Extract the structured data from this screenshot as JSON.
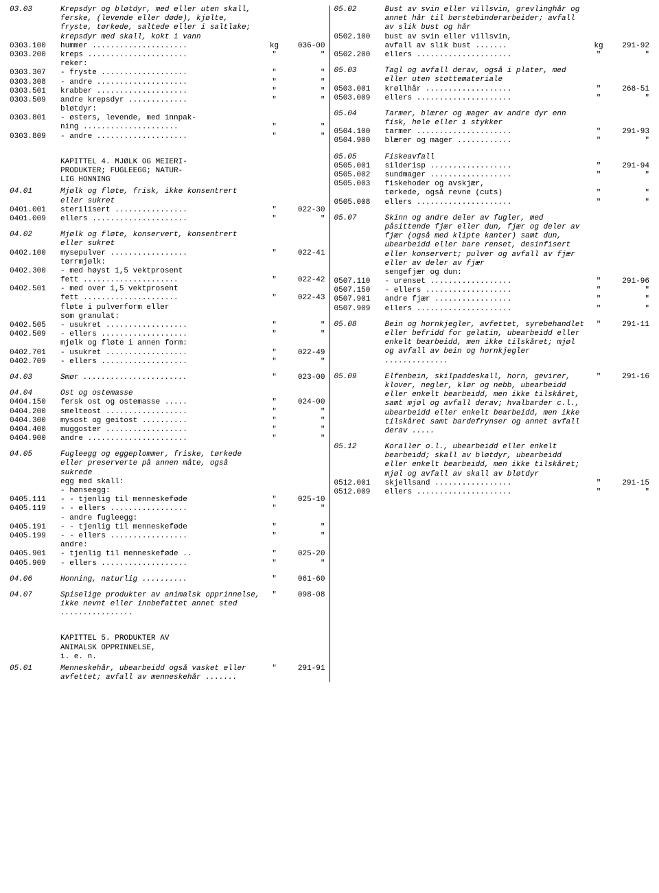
{
  "left": [
    {
      "code": "03.03",
      "desc": "Krepsdyr og bløtdyr, med eller uten skall, ferske, (levende eller døde), kjølte, fryste, tørkede, saltede eller i saltlake; krepsdyr med skall, kokt i vann",
      "italic": true
    },
    {
      "code": "0303.100",
      "desc": "hummer .....................",
      "unit": "kg",
      "num": "036-00"
    },
    {
      "code": "0303.200",
      "desc": "kreps ......................",
      "unit": "\"",
      "num": "\""
    },
    {
      "code": "",
      "desc": "reker:"
    },
    {
      "code": "0303.307",
      "desc": "- fryste ...................",
      "unit": "\"",
      "num": "\""
    },
    {
      "code": "0303.308",
      "desc": "- andre ....................",
      "unit": "\"",
      "num": "\""
    },
    {
      "code": "0303.501",
      "desc": "krabber ....................",
      "unit": "\"",
      "num": "\""
    },
    {
      "code": "0303.509",
      "desc": "andre krepsdyr .............",
      "unit": "\"",
      "num": "\""
    },
    {
      "code": "",
      "desc": "bløtdyr:"
    },
    {
      "code": "0303.801",
      "desc": "- østers, levende, med innpak-"
    },
    {
      "code": "",
      "desc": "  ning .....................",
      "unit": "\"",
      "num": "\""
    },
    {
      "code": "0303.809",
      "desc": "- andre ....................",
      "unit": "\"",
      "num": "\""
    },
    {
      "spacer": true
    },
    {
      "chap": "KAPITTEL 4. MJØLK OG MEIERI-\nPRODUKTER; FUGLEEGG; NATUR-\nLIG HONNING"
    },
    {
      "code": "04.01",
      "desc": "Mjølk og fløte, frisk, ikke konsentrert eller sukret",
      "italic": true
    },
    {
      "code": "0401.001",
      "desc": "sterilisert ................",
      "unit": "\"",
      "num": "022-30"
    },
    {
      "code": "0401.009",
      "desc": "ellers .....................",
      "unit": "\"",
      "num": "\""
    },
    {
      "spacer": true
    },
    {
      "code": "04.02",
      "desc": "Mjølk og fløte, konservert, konsentrert eller sukret",
      "italic": true
    },
    {
      "code": "0402.100",
      "desc": "mysepulver .................",
      "unit": "\"",
      "num": "022-41"
    },
    {
      "code": "",
      "desc": "tørrmjølk:"
    },
    {
      "code": "0402.300",
      "desc": "- med høyst 1,5 vektprosent"
    },
    {
      "code": "",
      "desc": "  fett .....................",
      "unit": "\"",
      "num": "022-42"
    },
    {
      "code": "0402.501",
      "desc": "- med over 1,5 vektprosent"
    },
    {
      "code": "",
      "desc": "  fett .....................",
      "unit": "\"",
      "num": "022-43"
    },
    {
      "code": "",
      "desc": "fløte i pulverform eller"
    },
    {
      "code": "",
      "desc": "som granulat:"
    },
    {
      "code": "0402.505",
      "desc": "- usukret ..................",
      "unit": "\"",
      "num": "\""
    },
    {
      "code": "0402.509",
      "desc": "- ellers ...................",
      "unit": "\"",
      "num": "\""
    },
    {
      "code": "",
      "desc": "mjølk og fløte i annen form:"
    },
    {
      "code": "0402.701",
      "desc": "- usukret ..................",
      "unit": "\"",
      "num": "022-49"
    },
    {
      "code": "0402.709",
      "desc": "- ellers ...................",
      "unit": "\"",
      "num": "\""
    },
    {
      "spacer": true
    },
    {
      "code": "04.03",
      "desc": "Smør .......................",
      "italic": true,
      "unit": "\"",
      "num": "023-00"
    },
    {
      "spacer": true
    },
    {
      "code": "04.04",
      "desc": "Ost og ostemasse",
      "italic": true
    },
    {
      "code": "0404.150",
      "desc": "fersk ost og ostemasse .....",
      "unit": "\"",
      "num": "024-00"
    },
    {
      "code": "0404.200",
      "desc": "smelteost ..................",
      "unit": "\"",
      "num": "\""
    },
    {
      "code": "0404.300",
      "desc": "mysost og geitost ..........",
      "unit": "\"",
      "num": "\""
    },
    {
      "code": "0404.400",
      "desc": "muggoster ..................",
      "unit": "\"",
      "num": "\""
    },
    {
      "code": "0404.900",
      "desc": "andre ......................",
      "unit": "\"",
      "num": "\""
    },
    {
      "spacer": true
    },
    {
      "code": "04.05",
      "desc": "Fugleegg og eggeplommer, friske, tørkede eller preserverte på annen måte, også sukrede",
      "italic": true
    },
    {
      "code": "",
      "desc": "egg med skall:"
    },
    {
      "code": "",
      "desc": "- hønseegg:"
    },
    {
      "code": "0405.111",
      "desc": "- - tjenlig til menneskeføde",
      "unit": "\"",
      "num": "025-10"
    },
    {
      "code": "0405.119",
      "desc": "- - ellers .................",
      "unit": "\"",
      "num": "\""
    },
    {
      "code": "",
      "desc": "- andre fugleegg:"
    },
    {
      "code": "0405.191",
      "desc": "- - tjenlig til menneskeføde",
      "unit": "\"",
      "num": "\""
    },
    {
      "code": "0405.199",
      "desc": "- - ellers .................",
      "unit": "\"",
      "num": "\""
    },
    {
      "code": "",
      "desc": "andre:"
    },
    {
      "code": "0405.901",
      "desc": "- tjenlig til menneskeføde ..",
      "unit": "\"",
      "num": "025-20"
    },
    {
      "code": "0405.909",
      "desc": "- ellers ...................",
      "unit": "\"",
      "num": "\""
    },
    {
      "spacer": true
    },
    {
      "code": "04.06",
      "desc": "Honning, naturlig ..........",
      "italic": true,
      "unit": "\"",
      "num": "061-60"
    },
    {
      "spacer": true
    },
    {
      "code": "04.07",
      "desc": "Spiselige produkter av animalsk opprinnelse, ikke nevnt eller innbefattet annet sted ................",
      "italic": true,
      "unit": "\"",
      "num": "098-08"
    },
    {
      "spacer": true
    },
    {
      "chap": "KAPITTEL 5. PRODUKTER AV\nANIMALSK OPPRINNELSE,\ni. e. n."
    },
    {
      "code": "05.01",
      "desc": "Menneskehår, ubearbeidd også vasket eller avfettet; avfall av menneskehår .......",
      "italic": true,
      "unit": "\"",
      "num": "291-91"
    }
  ],
  "right": [
    {
      "code": "05.02",
      "desc": "Bust av svin eller villsvin, grevlinghår og annet hår til børstebinderarbeider; avfall av slik bust og hår",
      "italic": true
    },
    {
      "code": "0502.100",
      "desc": "bust av svin eller villsvin,"
    },
    {
      "code": "",
      "desc": "avfall av slik bust .......",
      "unit": "kg",
      "num": "291-92"
    },
    {
      "code": "0502.200",
      "desc": "ellers .....................",
      "unit": "\"",
      "num": "\""
    },
    {
      "spacer": true
    },
    {
      "code": "05.03",
      "desc": "Tagl og avfall derav, også i plater, med eller uten støttemateriale",
      "italic": true
    },
    {
      "code": "0503.001",
      "desc": "krøllhår ...................",
      "unit": "\"",
      "num": "268-51"
    },
    {
      "code": "0503.009",
      "desc": "ellers .....................",
      "unit": "\"",
      "num": "\""
    },
    {
      "spacer": true
    },
    {
      "code": "05.04",
      "desc": "Tarmer, blærer og mager av andre dyr enn fisk, hele eller i stykker",
      "italic": true
    },
    {
      "code": "0504.100",
      "desc": "tarmer .....................",
      "unit": "\"",
      "num": "291-93"
    },
    {
      "code": "0504.900",
      "desc": "blærer og mager ............",
      "unit": "\"",
      "num": "\""
    },
    {
      "spacer": true
    },
    {
      "code": "05.05",
      "desc": "Fiskeavfall",
      "italic": true
    },
    {
      "code": "0505.001",
      "desc": "silderisp ..................",
      "unit": "\"",
      "num": "291-94"
    },
    {
      "code": "0505.002",
      "desc": "sundmager ..................",
      "unit": "\"",
      "num": "\""
    },
    {
      "code": "0505.003",
      "desc": "fiskehoder og avskjær,"
    },
    {
      "code": "",
      "desc": "tørkede, også revne (cuts)",
      "unit": "\"",
      "num": "\""
    },
    {
      "code": "0505.008",
      "desc": "ellers .....................",
      "unit": "\"",
      "num": "\""
    },
    {
      "spacer": true
    },
    {
      "code": "05.07",
      "desc": "Skinn og andre deler av fugler, med påsittende fjær eller dun, fjær og deler av fjær (også med klipte kanter) samt dun, ubearbeidd eller bare renset, desinfisert eller konservert; pulver og avfall av fjær eller av deler av fjær",
      "italic": true
    },
    {
      "code": "",
      "desc": "sengefjær og dun:"
    },
    {
      "code": "0507.110",
      "desc": "- urenset ..................",
      "unit": "\"",
      "num": "291-96"
    },
    {
      "code": "0507.150",
      "desc": "- ellers ...................",
      "unit": "\"",
      "num": "\""
    },
    {
      "code": "0507.901",
      "desc": "andre fjær .................",
      "unit": "\"",
      "num": "\""
    },
    {
      "code": "0507.909",
      "desc": "ellers .....................",
      "unit": "\"",
      "num": "\""
    },
    {
      "spacer": true
    },
    {
      "code": "05.08",
      "desc": "Bein og hornkjegler, avfettet, syrebehandlet eller befridd for gelatin, ubearbeidd eller enkelt bearbeidd, men ikke tilskåret; mjøl og avfall av bein og hornkjegler ..............",
      "italic": true,
      "unit": "\"",
      "num": "291-11"
    },
    {
      "spacer": true
    },
    {
      "code": "05.09",
      "desc": "Elfenbein, skilpaddeskall, horn, gevirer, klover, negler, klør og nebb, ubearbeidd eller enkelt bearbeidd, men ikke tilskåret, samt mjøl og avfall derav; hvalbarder c.l., ubearbeidd eller enkelt bearbeidd, men ikke tilskåret samt bardefrynser og annet avfall derav .....",
      "italic": true,
      "unit": "\"",
      "num": "291-16"
    },
    {
      "spacer": true
    },
    {
      "code": "05.12",
      "desc": "Koraller o.l., ubearbeidd eller enkelt bearbeidd; skall av bløtdyr, ubearbeidd eller enkelt bearbeidd, men ikke tilskåret; mjøl og avfall av skall av bløtdyr",
      "italic": true
    },
    {
      "code": "0512.001",
      "desc": "skjellsand .................",
      "unit": "\"",
      "num": "291-15"
    },
    {
      "code": "0512.009",
      "desc": "ellers .....................",
      "unit": "\"",
      "num": "\""
    }
  ]
}
